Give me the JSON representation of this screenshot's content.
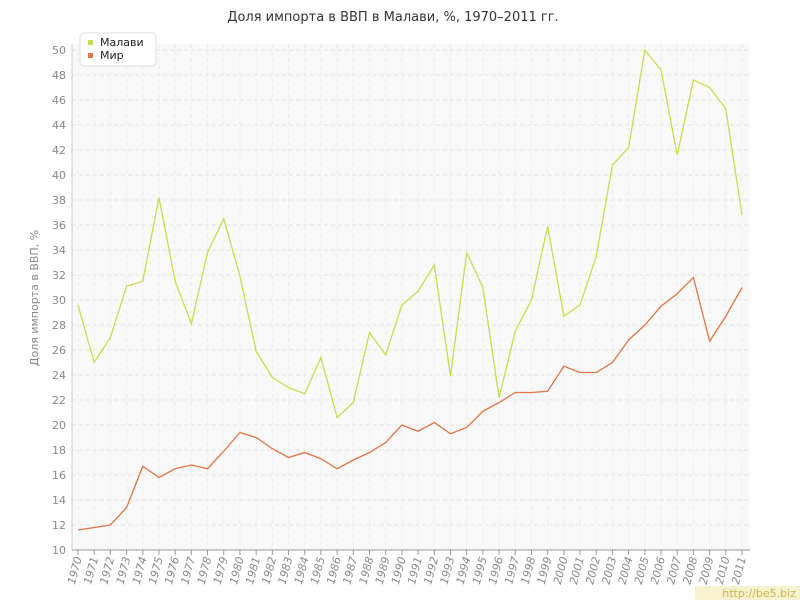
{
  "chart_data": {
    "type": "line",
    "title": "Доля импорта в ВВП в Малави, %, 1970–2011 гг.",
    "y_label": "Доля импорта в ВВП, %",
    "watermark": "http://be5.biz",
    "categories": [
      "1970",
      "1971",
      "1972",
      "1973",
      "1974",
      "1975",
      "1976",
      "1977",
      "1978",
      "1979",
      "1980",
      "1981",
      "1982",
      "1983",
      "1984",
      "1985",
      "1986",
      "1987",
      "1988",
      "1989",
      "1990",
      "1991",
      "1992",
      "1993",
      "1994",
      "1995",
      "1996",
      "1997",
      "1998",
      "1999",
      "2000",
      "2001",
      "2002",
      "2003",
      "2004",
      "2005",
      "2006",
      "2007",
      "2008",
      "2009",
      "2010",
      "2011"
    ],
    "series": [
      {
        "name": "Малави",
        "color": "#c3de4f",
        "values": [
          29.6,
          25.0,
          27.0,
          31.1,
          31.5,
          38.2,
          31.5,
          28.1,
          33.8,
          36.5,
          31.9,
          25.9,
          23.8,
          23.0,
          22.5,
          25.4,
          20.6,
          21.8,
          27.4,
          25.6,
          29.6,
          30.7,
          32.8,
          23.9,
          33.8,
          31.0,
          22.2,
          27.5,
          30.0,
          35.9,
          28.7,
          29.6,
          33.5,
          40.8,
          42.2,
          50.0,
          48.4,
          41.6,
          47.6,
          47.0,
          45.3,
          36.8
        ]
      },
      {
        "name": "Мир",
        "color": "#e07445",
        "values": [
          11.6,
          11.8,
          12.0,
          13.4,
          16.7,
          15.8,
          16.5,
          16.8,
          16.5,
          17.9,
          19.4,
          19.0,
          18.1,
          17.4,
          17.8,
          17.3,
          16.5,
          17.2,
          17.8,
          18.6,
          20.0,
          19.5,
          20.2,
          19.3,
          19.8,
          21.1,
          21.8,
          22.6,
          22.6,
          22.7,
          24.7,
          24.2,
          24.2,
          25.0,
          26.8,
          28.0,
          29.5,
          30.5,
          31.8,
          26.7,
          28.7,
          31.0
        ]
      }
    ],
    "ylim": [
      10,
      50
    ],
    "yticks": [
      10,
      12,
      14,
      16,
      18,
      20,
      22,
      24,
      26,
      28,
      30,
      32,
      34,
      36,
      38,
      40,
      42,
      44,
      46,
      48,
      50
    ],
    "grid": true,
    "legend": "top-left"
  }
}
